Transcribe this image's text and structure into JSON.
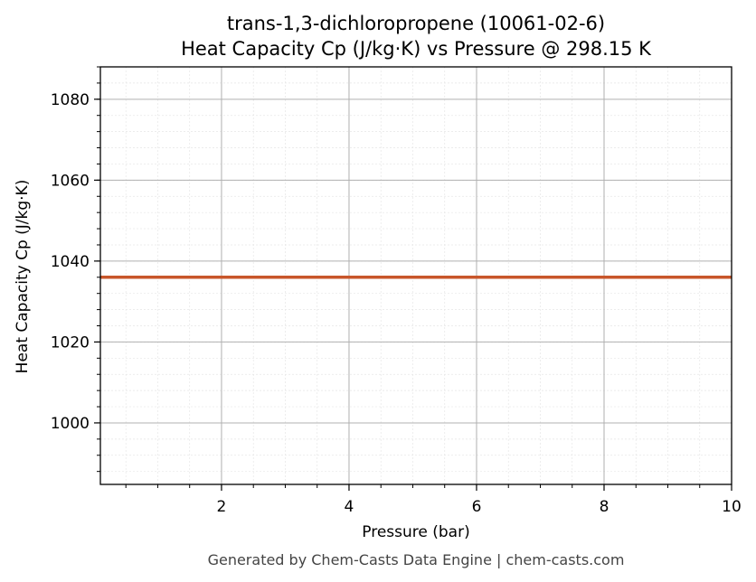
{
  "chart_data": {
    "type": "line",
    "title": "trans-1,3-dichloropropene (10061-02-6)",
    "subtitle": "Heat Capacity Cp (J/kg·K) vs Pressure @ 298.15 K",
    "xlabel": "Pressure (bar)",
    "ylabel": "Heat Capacity Cp (J/kg·K)",
    "xlim": [
      0.1,
      10
    ],
    "ylim": [
      984.8,
      1088
    ],
    "x_ticks": [
      2,
      4,
      6,
      8,
      10
    ],
    "y_ticks": [
      1000,
      1020,
      1040,
      1060,
      1080
    ],
    "x_minor_step": 0.5,
    "y_minor_step": 4,
    "grid": true,
    "series": [
      {
        "color": "#c8562a",
        "x": [
          0.1,
          1,
          2,
          3,
          4,
          5,
          6,
          7,
          8,
          9,
          10
        ],
        "y": [
          1036,
          1036,
          1036,
          1036,
          1036,
          1036,
          1036,
          1036,
          1036,
          1036,
          1036
        ]
      }
    ]
  },
  "footer": "Generated by Chem-Casts Data Engine | chem-casts.com"
}
